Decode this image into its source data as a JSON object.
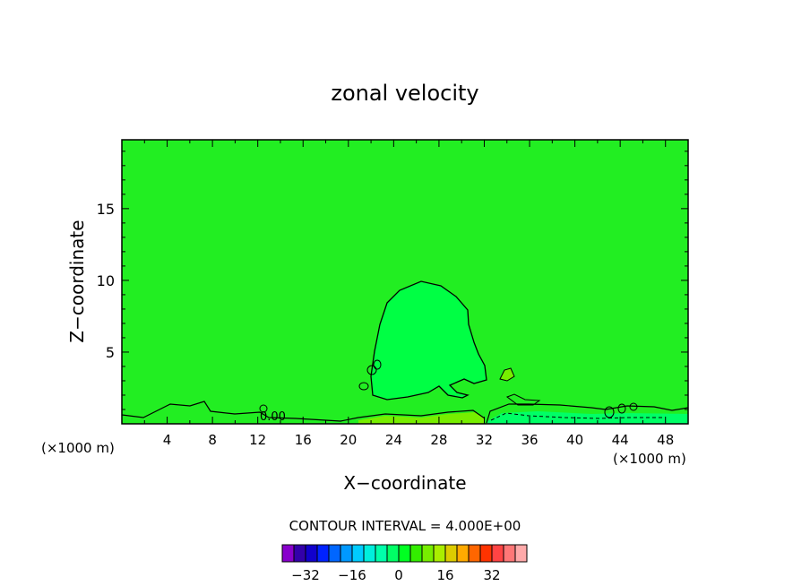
{
  "chart_data": {
    "type": "contour",
    "title": "zonal velocity",
    "xlabel": "X−coordinate",
    "ylabel": "Z−coordinate",
    "x_unit_left": "(×1000 m)",
    "x_unit_right": "(×1000 m)",
    "xlim": [
      0,
      50
    ],
    "ylim": [
      0,
      19.8
    ],
    "x_ticks": [
      4,
      8,
      12,
      16,
      20,
      24,
      28,
      32,
      36,
      40,
      44,
      48
    ],
    "x_tick_labels": [
      "4",
      "8",
      "12",
      "16",
      "20",
      "24",
      "28",
      "32",
      "36",
      "40",
      "44",
      "48"
    ],
    "y_ticks": [
      5,
      10,
      15
    ],
    "y_tick_labels": [
      "5",
      "10",
      "15"
    ],
    "contour_interval_text": "CONTOUR INTERVAL = 4.000E+00",
    "contour_interval": 4,
    "contour_labels": [
      "0.00",
      "0.00",
      "0.00"
    ],
    "background_color": "#22ee22",
    "feature_color": "#00ff44",
    "colorbar": {
      "levels": [
        -36,
        -32,
        -28,
        -24,
        -20,
        -16,
        -12,
        -8,
        -4,
        0,
        4,
        8,
        12,
        16,
        20,
        24,
        28,
        32,
        36
      ],
      "colors": [
        "#8800cc",
        "#3300aa",
        "#1100cc",
        "#0022ff",
        "#0066ff",
        "#0099ff",
        "#00ccff",
        "#00eedd",
        "#00ffaa",
        "#00ff66",
        "#00ff22",
        "#33ee00",
        "#77ee00",
        "#aaee00",
        "#ddcc00",
        "#ffaa00",
        "#ff6600",
        "#ff3300",
        "#ff4444",
        "#ff7777",
        "#ffaaaa"
      ],
      "tick_labels": [
        "−32",
        "−16",
        "0",
        "16",
        "32"
      ],
      "tick_values": [
        -32,
        -16,
        0,
        16,
        32
      ]
    }
  }
}
